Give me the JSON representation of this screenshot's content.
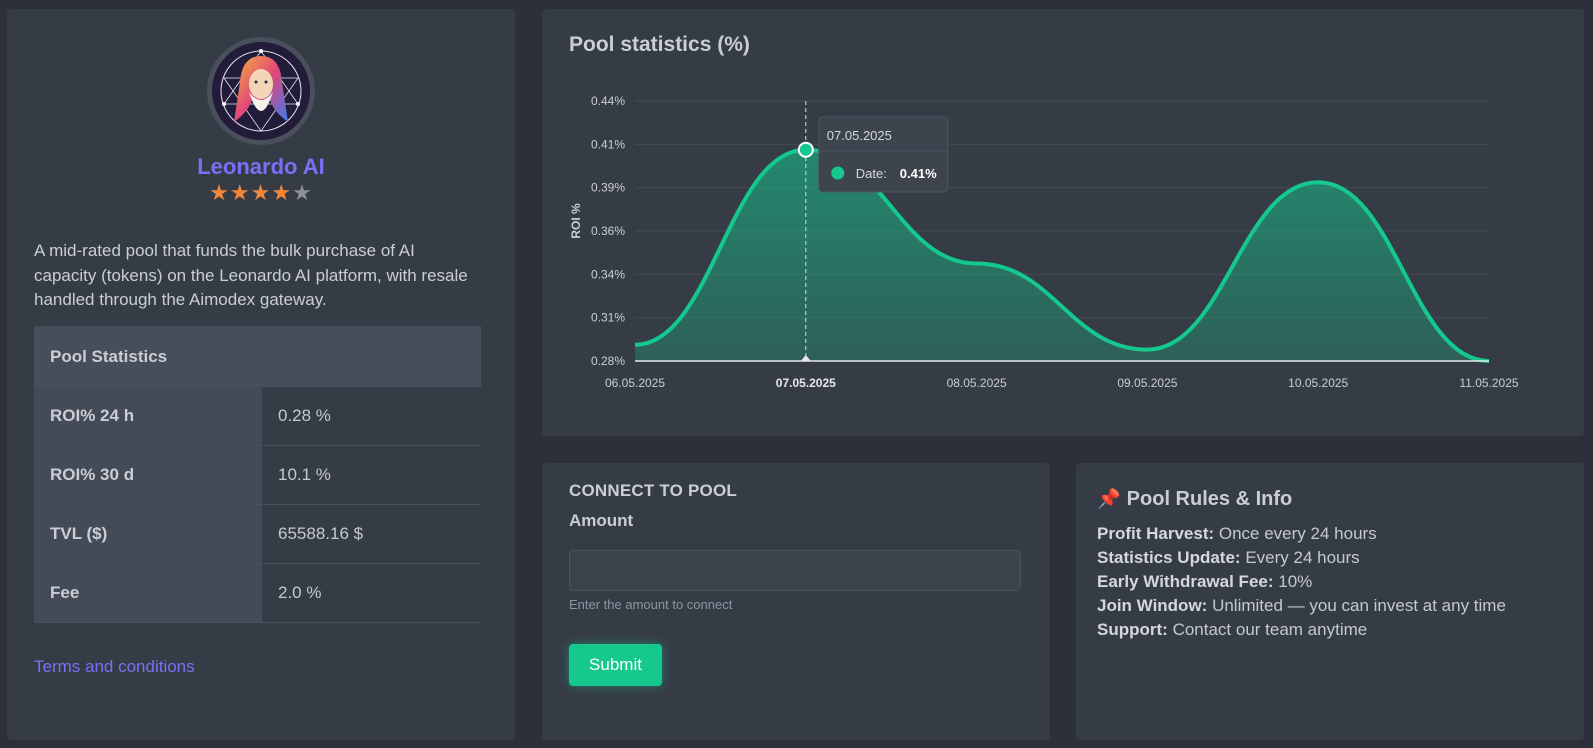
{
  "profile": {
    "name": "Leonardo AI",
    "rating": 4,
    "rating_max": 5,
    "star_glyph": "★",
    "description": "A mid-rated pool that funds the bulk purchase of AI capacity (tokens) on the Leonardo AI platform, with resale handled through the Aimodex gateway.",
    "stats": {
      "header": "Pool Statistics",
      "rows": [
        {
          "label": "ROI% 24 h",
          "value": "0.28 %"
        },
        {
          "label": "ROI% 30 d",
          "value": "10.1 %"
        },
        {
          "label": "TVL ($)",
          "value": "65588.16 $"
        },
        {
          "label": "Fee",
          "value": "2.0 %"
        }
      ]
    },
    "terms_link": "Terms and conditions"
  },
  "chart": {
    "title": "Pool statistics (%)"
  },
  "chart_data": {
    "type": "area",
    "x": [
      "06.05.2025",
      "07.05.2025",
      "08.05.2025",
      "09.05.2025",
      "10.05.2025",
      "11.05.2025"
    ],
    "values": [
      0.29,
      0.41,
      0.34,
      0.287,
      0.39,
      0.28
    ],
    "ylabel": "ROI %",
    "yticks": [
      "0.44%",
      "0.41%",
      "0.39%",
      "0.36%",
      "0.34%",
      "0.31%",
      "0.28%"
    ],
    "ylim": [
      0.28,
      0.44
    ],
    "grid": true,
    "color": "#14c88e",
    "highlighted_x": "07.05.2025",
    "tooltip": {
      "title": "07.05.2025",
      "label": "Date:",
      "value": "0.41%"
    }
  },
  "connect": {
    "title": "CONNECT TO POOL",
    "amount_label": "Amount",
    "amount_value": "",
    "amount_placeholder": "",
    "help_text": "Enter the amount to connect",
    "submit_label": "Submit"
  },
  "rules": {
    "icon": "pushpin-icon",
    "icon_glyph": "📌",
    "title": "Pool Rules & Info",
    "items": [
      {
        "label": "Profit Harvest:",
        "value": "Once every 24 hours"
      },
      {
        "label": "Statistics Update:",
        "value": "Every 24 hours"
      },
      {
        "label": "Early Withdrawal Fee:",
        "value": "10%"
      },
      {
        "label": "Join Window:",
        "value": "Unlimited — you can invest at any time"
      },
      {
        "label": "Support:",
        "value": "Contact our team anytime"
      }
    ]
  },
  "colors": {
    "background": "#2b3039",
    "card": "#363c46",
    "accent_purple": "#7b6ff6",
    "accent_green": "#14c88e",
    "star": "#f2873b"
  }
}
